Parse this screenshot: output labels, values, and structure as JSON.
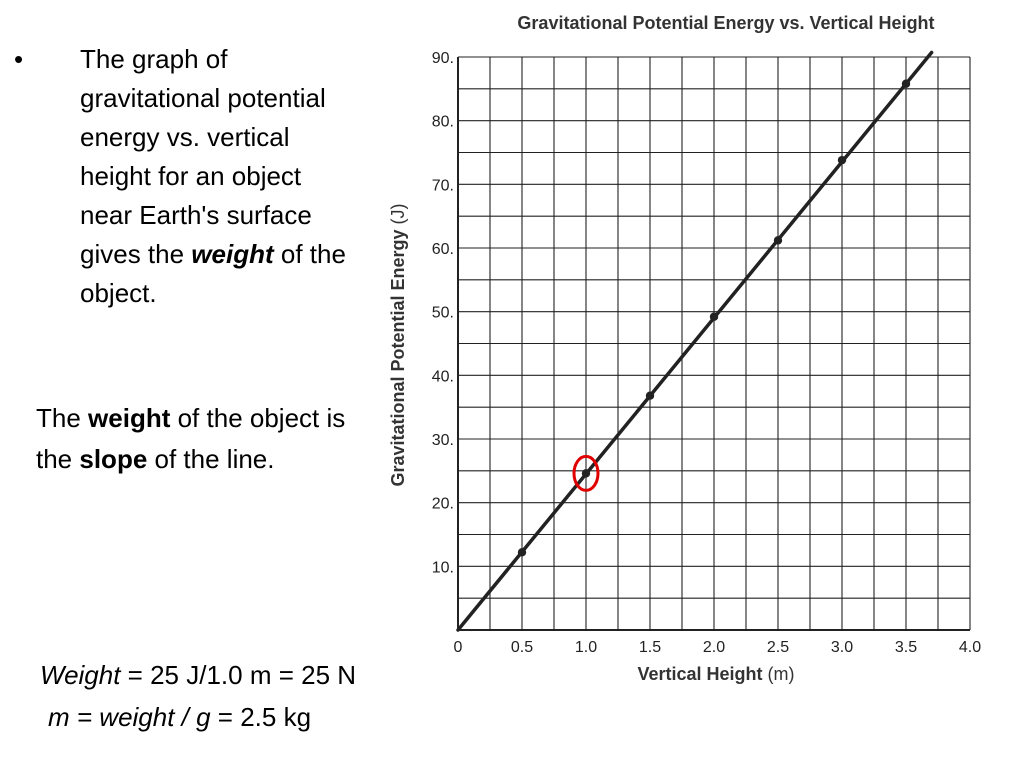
{
  "slide": {
    "bullet_symbol": "•",
    "bullet_text_before": "The graph of gravitational potential energy vs. vertical height for an object near Earth's surface gives the ",
    "bullet_text_emphasis": "weight",
    "bullet_text_after": " of the object.",
    "weight_line": {
      "part1": "The ",
      "bold1": "weight",
      "part2": " of the object is the ",
      "bold2": "slope",
      "part3": " of the line."
    },
    "equation1": {
      "italic": "Weight",
      "rest": " = 25 J/1.0 m = 25 N"
    },
    "equation2": {
      "italic": "m = weight / g",
      "rest": " = 2.5 kg"
    }
  },
  "chart_data": {
    "type": "line",
    "title": "Gravitational Potential Energy vs. Vertical Height",
    "xlabel": "Vertical Height",
    "xlabel_unit": "(m)",
    "ylabel": "Gravitational Potential Energy",
    "ylabel_unit": "(J)",
    "xlim": [
      0,
      4.0
    ],
    "ylim": [
      0,
      90
    ],
    "x_ticks": [
      "0",
      "0.5",
      "1.0",
      "1.5",
      "2.0",
      "2.5",
      "3.0",
      "3.5",
      "4.0"
    ],
    "y_ticks": [
      "10.",
      "20.",
      "30.",
      "40.",
      "50.",
      "60.",
      "70.",
      "80.",
      "90."
    ],
    "grid": true,
    "series": [
      {
        "x": [
          0.5,
          1.0,
          1.5,
          2.0,
          2.5,
          3.0,
          3.5
        ],
        "y": [
          12.2,
          24.6,
          36.8,
          49.2,
          61.2,
          73.8,
          85.8
        ]
      }
    ],
    "line_extent_x": [
      0,
      3.7
    ],
    "highlighted_point": {
      "x": 1.0,
      "y": 24.6,
      "color": "#e00000"
    },
    "line_color": "#222222",
    "grid_color": "#222222"
  }
}
